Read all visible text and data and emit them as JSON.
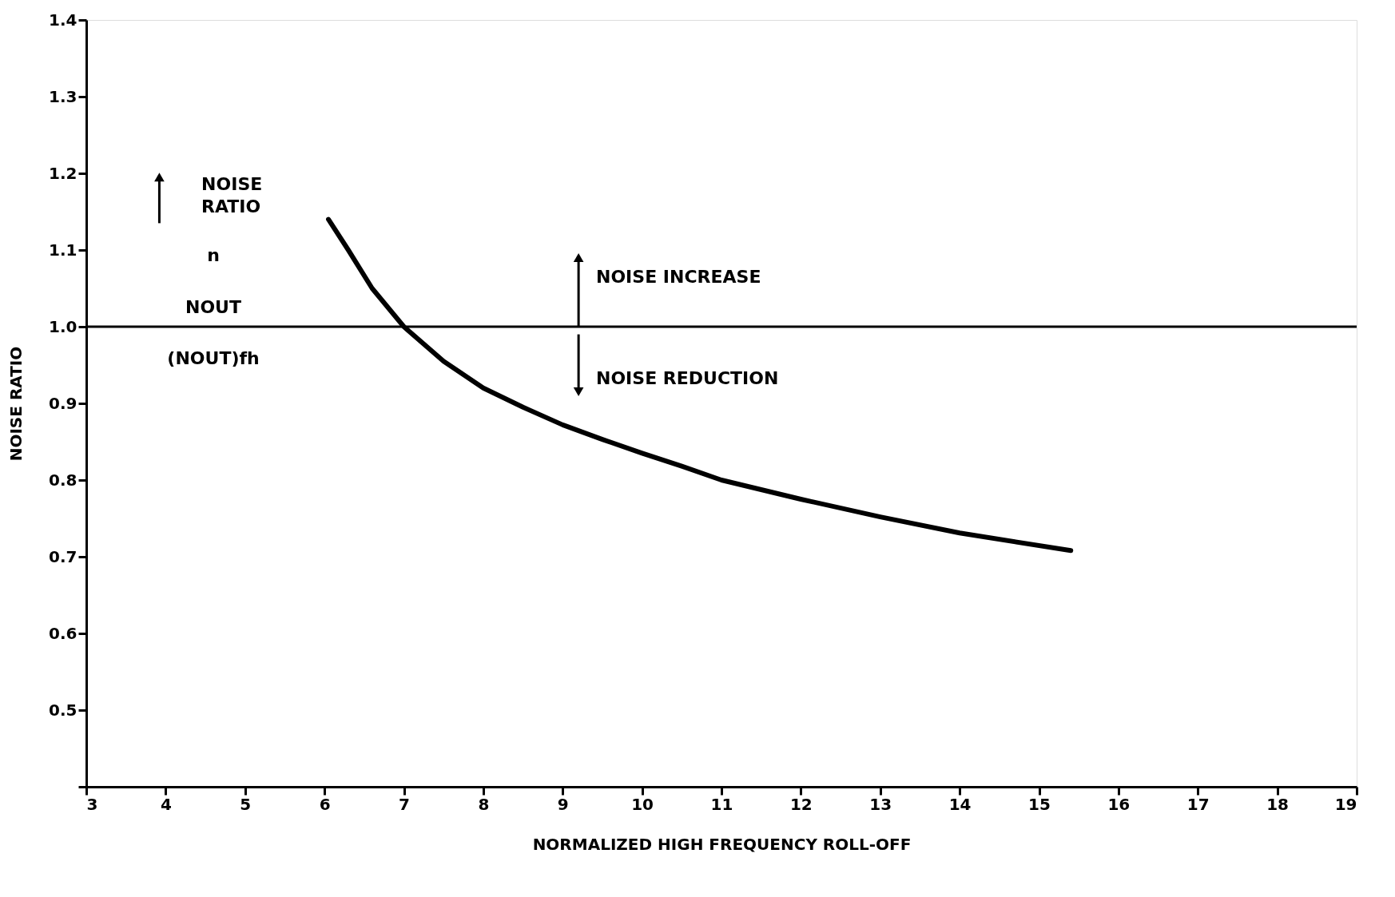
{
  "chart_data": {
    "type": "line",
    "xlabel": "NORMALIZED HIGH FREQUENCY ROLL-OFF",
    "ylabel": "NOISE RATIO",
    "x": [
      6.05,
      6.3,
      6.6,
      7.0,
      7.5,
      8.0,
      8.5,
      9.0,
      9.5,
      10.0,
      10.5,
      11.0,
      12.0,
      13.0,
      14.0,
      15.4
    ],
    "series": [
      {
        "color": "#000000",
        "values": [
          1.14,
          1.1,
          1.05,
          1.0,
          0.955,
          0.92,
          0.895,
          0.872,
          0.853,
          0.835,
          0.818,
          0.8,
          0.775,
          0.752,
          0.731,
          0.708
        ]
      }
    ],
    "xlim": [
      3,
      19
    ],
    "xticks": [
      3,
      4,
      5,
      6,
      7,
      8,
      9,
      10,
      11,
      12,
      13,
      14,
      15,
      16,
      17,
      18,
      19
    ],
    "ylim": [
      0.4,
      1.4
    ],
    "yticks": [
      {
        "value": 0.4,
        "label": null
      },
      0.5,
      0.6,
      0.7,
      0.8,
      0.9,
      {
        "value": 1.0,
        "label": "1.0"
      },
      1.1,
      1.2,
      1.3,
      1.4
    ],
    "ref_lines": [
      {
        "axis": "y",
        "value": 1.0,
        "color": "#000000"
      }
    ],
    "annotations": [
      "NOISE RATIO",
      "n",
      "NOUT",
      "(NOUT)fh",
      "NOISE INCREASE",
      "NOISE REDUCTION"
    ],
    "grid": false,
    "marker": "none",
    "line_style": "solid"
  }
}
